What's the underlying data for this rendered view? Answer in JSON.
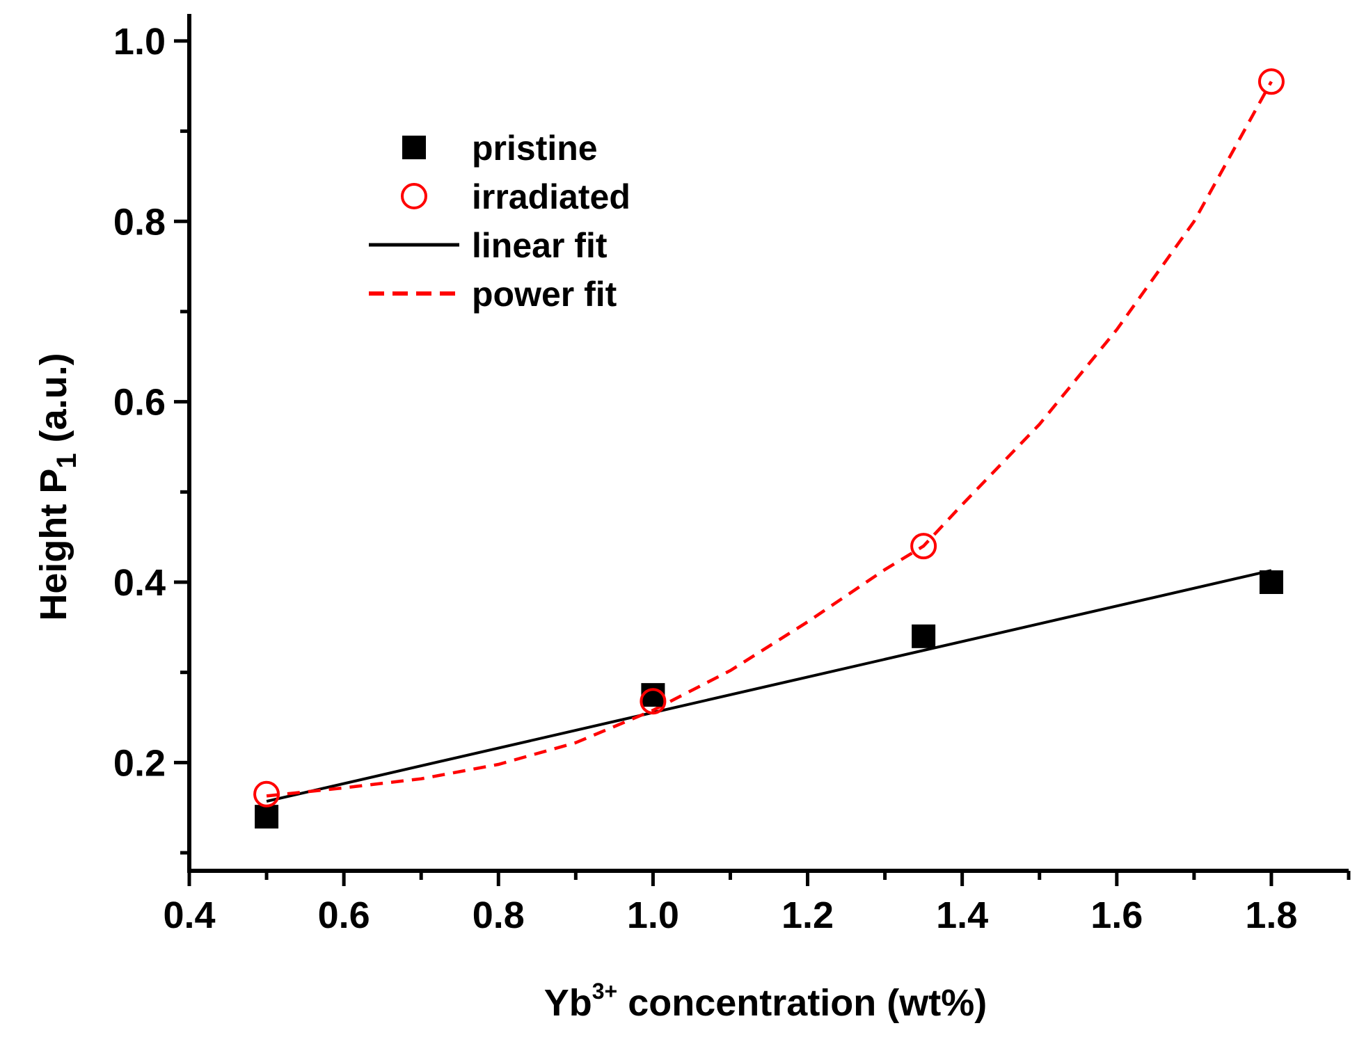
{
  "chart_data": {
    "type": "scatter",
    "xlabel": {
      "base": "Yb",
      "sup": "3+",
      "rest": " concentration  (wt%)"
    },
    "ylabel": {
      "base": "Height P",
      "sub": "1",
      "rest": " (a.u.)"
    },
    "xlim": [
      0.4,
      1.9
    ],
    "ylim": [
      0.08,
      1.03
    ],
    "x_ticks": [
      "0.4",
      "0.6",
      "0.8",
      "1.0",
      "1.2",
      "1.4",
      "1.6",
      "1.8"
    ],
    "y_ticks": [
      "0.2",
      "0.4",
      "0.6",
      "0.8",
      "1.0"
    ],
    "grid": false,
    "legend_position": "upper-left",
    "series": [
      {
        "name": "pristine",
        "kind": "points",
        "marker": "filled-square",
        "color": "#000000",
        "x": [
          0.5,
          1.0,
          1.35,
          1.8
        ],
        "y": [
          0.14,
          0.275,
          0.34,
          0.4
        ]
      },
      {
        "name": "irradiated",
        "kind": "points",
        "marker": "open-circle",
        "color": "#ff0000",
        "x": [
          0.5,
          1.0,
          1.35,
          1.8
        ],
        "y": [
          0.165,
          0.268,
          0.44,
          0.955
        ]
      },
      {
        "name": "linear fit",
        "kind": "line",
        "style": "solid",
        "color": "#000000",
        "x": [
          0.5,
          1.8
        ],
        "y": [
          0.157,
          0.413
        ]
      },
      {
        "name": "power fit",
        "kind": "line",
        "style": "dashed",
        "color": "#ff0000",
        "x": [
          0.5,
          0.6,
          0.7,
          0.8,
          0.9,
          1.0,
          1.1,
          1.2,
          1.3,
          1.35,
          1.4,
          1.5,
          1.6,
          1.7,
          1.8
        ],
        "y": [
          0.163,
          0.172,
          0.182,
          0.198,
          0.222,
          0.258,
          0.302,
          0.356,
          0.414,
          0.44,
          0.486,
          0.575,
          0.68,
          0.8,
          0.955
        ]
      }
    ]
  }
}
